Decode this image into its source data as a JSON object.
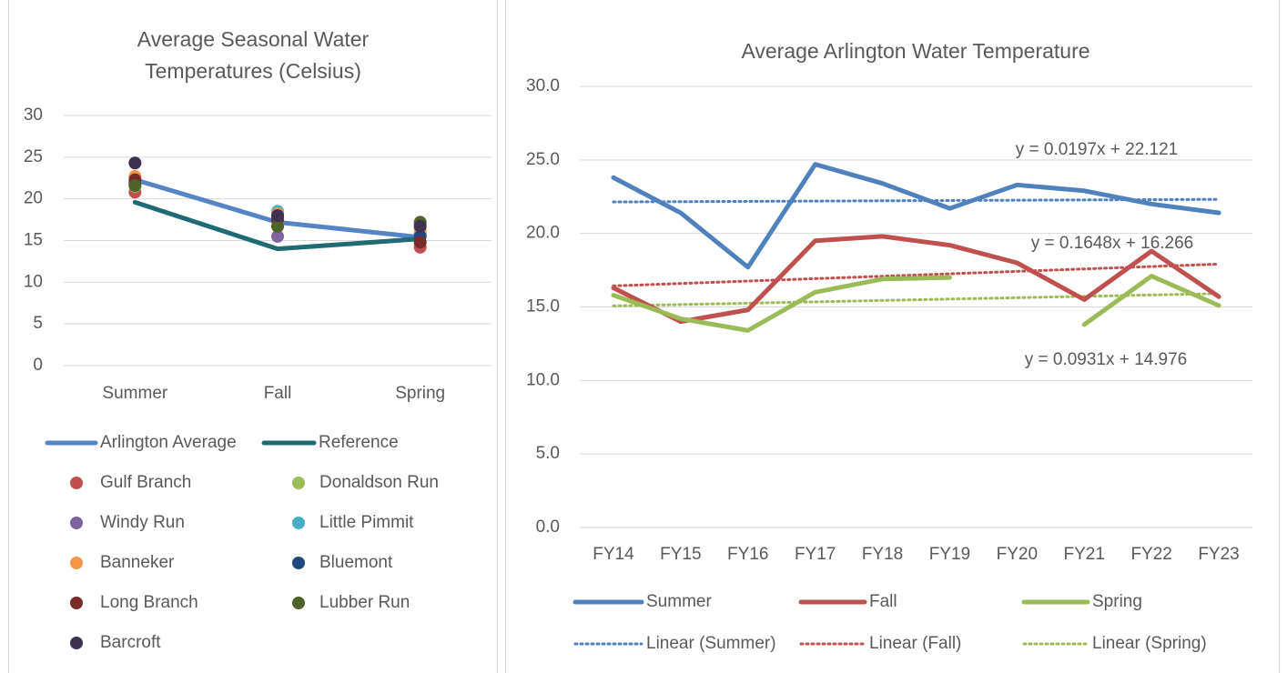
{
  "chart_data": [
    {
      "type": "line",
      "title": [
        "Average Seasonal Water",
        "Temperatures (Celsius)"
      ],
      "categories": [
        "Summer",
        "Fall",
        "Spring"
      ],
      "ylim": [
        0,
        30
      ],
      "yticks": [
        0,
        5,
        10,
        15,
        20,
        25,
        30
      ],
      "grid": true,
      "series": [
        {
          "name": "Arlington Average",
          "type": "line",
          "color": "#5585c4",
          "values": [
            22.3,
            17.2,
            15.4
          ]
        },
        {
          "name": "Reference",
          "type": "line",
          "color": "#1f6a73",
          "values": [
            19.6,
            14.0,
            15.2
          ]
        },
        {
          "name": "Gulf Branch",
          "type": "scatter",
          "color": "#c0504d",
          "values": [
            20.8,
            18.0,
            14.2
          ]
        },
        {
          "name": "Donaldson Run",
          "type": "scatter",
          "color": "#9bbb59",
          "values": [
            21.5,
            16.8,
            17.0
          ]
        },
        {
          "name": "Windy Run",
          "type": "scatter",
          "color": "#8064a2",
          "values": [
            22.0,
            15.5,
            15.8
          ]
        },
        {
          "name": "Little Pimmit",
          "type": "scatter",
          "color": "#4bacc6",
          "values": [
            22.0,
            18.5,
            15.5
          ]
        },
        {
          "name": "Banneker",
          "type": "scatter",
          "color": "#f79646",
          "values": [
            22.7,
            18.2,
            16.2
          ]
        },
        {
          "name": "Bluemont",
          "type": "scatter",
          "color": "#1f497d",
          "values": [
            21.8,
            17.8,
            15.5
          ]
        },
        {
          "name": "Long Branch",
          "type": "scatter",
          "color": "#772c2a",
          "values": [
            22.3,
            17.5,
            14.8
          ]
        },
        {
          "name": "Lubber Run",
          "type": "scatter",
          "color": "#4f6228",
          "values": [
            21.6,
            16.7,
            17.2
          ]
        },
        {
          "name": "Barcroft",
          "type": "scatter",
          "color": "#3f3151",
          "values": [
            24.3,
            18.0,
            16.7
          ]
        }
      ]
    },
    {
      "type": "line",
      "title": [
        "Average Arlington Water Temperature"
      ],
      "categories": [
        "FY14",
        "FY15",
        "FY16",
        "FY17",
        "FY18",
        "FY19",
        "FY20",
        "FY21",
        "FY22",
        "FY23"
      ],
      "ylim": [
        0,
        30
      ],
      "yticks": [
        {
          "value": 0,
          "label": "0.0"
        },
        {
          "value": 5,
          "label": "5.0"
        },
        {
          "value": 10,
          "label": "10.0"
        },
        {
          "value": 15,
          "label": "15.0"
        },
        {
          "value": 20,
          "label": "20.0"
        },
        {
          "value": 25,
          "label": "25.0"
        },
        {
          "value": 30,
          "label": "30.0"
        }
      ],
      "grid": true,
      "series": [
        {
          "name": "Summer",
          "type": "line",
          "color": "#4f81bd",
          "values": [
            23.8,
            21.4,
            17.7,
            24.7,
            23.4,
            21.7,
            23.3,
            22.9,
            22.0,
            21.4
          ]
        },
        {
          "name": "Fall",
          "type": "line",
          "color": "#c0504d",
          "values": [
            16.3,
            14.0,
            14.8,
            19.5,
            19.8,
            19.2,
            18.0,
            15.5,
            18.8,
            15.7
          ]
        },
        {
          "name": "Spring",
          "type": "line",
          "color": "#9bbb59",
          "values": [
            15.8,
            14.2,
            13.4,
            16.0,
            16.9,
            17.0,
            null,
            13.8,
            17.1,
            15.1
          ]
        }
      ],
      "trendlines": [
        {
          "name": "Linear (Summer)",
          "color": "#4f81bd",
          "slope": 0.0197,
          "intercept": 22.121,
          "label": "y = 0.0197x + 22.121"
        },
        {
          "name": "Linear (Fall)",
          "color": "#c0504d",
          "slope": 0.1648,
          "intercept": 16.266,
          "label": "y = 0.1648x + 16.266"
        },
        {
          "name": "Linear (Spring)",
          "color": "#9bbb59",
          "slope": 0.0931,
          "intercept": 14.976,
          "label": "y = 0.0931x + 14.976"
        }
      ]
    }
  ]
}
